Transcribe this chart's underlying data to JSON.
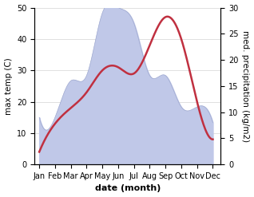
{
  "months": [
    "Jan",
    "Feb",
    "Mar",
    "Apr",
    "May",
    "Jun",
    "Jul",
    "Aug",
    "Sep",
    "Oct",
    "Nov",
    "Dec"
  ],
  "x": [
    1,
    2,
    3,
    4,
    5,
    6,
    7,
    8,
    9,
    10,
    11,
    12
  ],
  "precipitation": [
    9,
    9,
    16,
    17,
    29,
    30,
    27,
    17,
    17,
    11,
    11,
    8
  ],
  "temperature": [
    4,
    13,
    18,
    23,
    30,
    31,
    29,
    38,
    47,
    40,
    20,
    8
  ],
  "temp_color": "#c03040",
  "fill_color": "#c0c8e8",
  "fill_edge_color": "#a0aad0",
  "ylim_left": [
    0,
    50
  ],
  "ylim_right": [
    0,
    30
  ],
  "xlabel": "date (month)",
  "ylabel_left": "max temp (C)",
  "ylabel_right": "med. precipitation (kg/m2)",
  "label_fontsize": 7.5,
  "tick_fontsize": 7,
  "xlabel_fontsize": 8,
  "bg_color": "#f0f0f0"
}
